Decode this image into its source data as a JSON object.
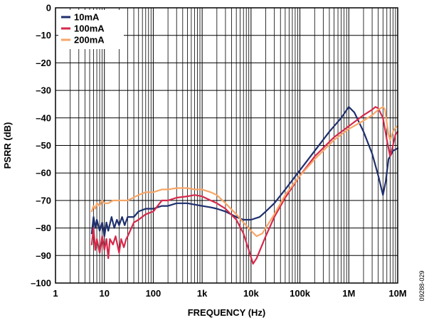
{
  "chart_data": {
    "type": "line",
    "xlabel": "FREQUENCY (Hz)",
    "ylabel": "PSRR (dB)",
    "x_scale": "log",
    "xlim": [
      1,
      10000000
    ],
    "ylim": [
      -100,
      0
    ],
    "x_ticks": [
      {
        "value": 1,
        "label": "1"
      },
      {
        "value": 10,
        "label": "10"
      },
      {
        "value": 100,
        "label": "100"
      },
      {
        "value": 1000,
        "label": "1k"
      },
      {
        "value": 10000,
        "label": "10k"
      },
      {
        "value": 100000,
        "label": "100k"
      },
      {
        "value": 1000000,
        "label": "1M"
      },
      {
        "value": 10000000,
        "label": "10M"
      }
    ],
    "y_ticks": [
      {
        "value": 0,
        "label": "0"
      },
      {
        "value": -10,
        "label": "–10"
      },
      {
        "value": -20,
        "label": "–20"
      },
      {
        "value": -30,
        "label": "–30"
      },
      {
        "value": -40,
        "label": "–40"
      },
      {
        "value": -50,
        "label": "–50"
      },
      {
        "value": -60,
        "label": "–60"
      },
      {
        "value": -70,
        "label": "–70"
      },
      {
        "value": -80,
        "label": "–80"
      },
      {
        "value": -90,
        "label": "–90"
      },
      {
        "value": -100,
        "label": "–100"
      }
    ],
    "grid": true,
    "legend_position": "top-left",
    "figure_code": "09288-029",
    "series": [
      {
        "name": "10mA",
        "color": "#1f2f6e",
        "points": [
          [
            5.5,
            -82
          ],
          [
            6,
            -76
          ],
          [
            6.5,
            -80
          ],
          [
            7,
            -77
          ],
          [
            8,
            -81
          ],
          [
            9,
            -78
          ],
          [
            10,
            -83
          ],
          [
            11,
            -78
          ],
          [
            12,
            -81
          ],
          [
            14,
            -76
          ],
          [
            16,
            -80
          ],
          [
            18,
            -77
          ],
          [
            20,
            -79
          ],
          [
            23,
            -76
          ],
          [
            26,
            -79
          ],
          [
            30,
            -76
          ],
          [
            40,
            -76
          ],
          [
            50,
            -74
          ],
          [
            70,
            -73
          ],
          [
            100,
            -73
          ],
          [
            150,
            -72
          ],
          [
            200,
            -72
          ],
          [
            300,
            -71
          ],
          [
            500,
            -71
          ],
          [
            700,
            -71.5
          ],
          [
            1000,
            -72
          ],
          [
            1500,
            -72.5
          ],
          [
            2000,
            -73
          ],
          [
            3000,
            -74
          ],
          [
            5000,
            -76
          ],
          [
            7000,
            -77
          ],
          [
            10000,
            -77
          ],
          [
            15000,
            -76
          ],
          [
            20000,
            -74
          ],
          [
            30000,
            -71
          ],
          [
            50000,
            -66
          ],
          [
            100000,
            -59
          ],
          [
            200000,
            -52
          ],
          [
            400000,
            -45
          ],
          [
            700000,
            -40
          ],
          [
            1000000,
            -36
          ],
          [
            1300000,
            -38
          ],
          [
            2000000,
            -45
          ],
          [
            3000000,
            -53
          ],
          [
            4000000,
            -61
          ],
          [
            5000000,
            -68
          ],
          [
            5700000,
            -63
          ],
          [
            6500000,
            -55
          ],
          [
            8000000,
            -52
          ],
          [
            10000000,
            -51
          ]
        ]
      },
      {
        "name": "100mA",
        "color": "#d6284a",
        "points": [
          [
            5.5,
            -86
          ],
          [
            6,
            -80
          ],
          [
            6.5,
            -88
          ],
          [
            7,
            -84
          ],
          [
            8,
            -89
          ],
          [
            9,
            -83
          ],
          [
            10,
            -88
          ],
          [
            11,
            -84
          ],
          [
            12,
            -91
          ],
          [
            13,
            -84
          ],
          [
            15,
            -86
          ],
          [
            17,
            -83
          ],
          [
            20,
            -89
          ],
          [
            22,
            -84
          ],
          [
            25,
            -87
          ],
          [
            28,
            -84
          ],
          [
            30,
            -83
          ],
          [
            40,
            -78
          ],
          [
            50,
            -77
          ],
          [
            70,
            -75
          ],
          [
            100,
            -74
          ],
          [
            150,
            -70
          ],
          [
            200,
            -70
          ],
          [
            300,
            -69
          ],
          [
            500,
            -68.5
          ],
          [
            700,
            -68
          ],
          [
            1000,
            -68.5
          ],
          [
            1500,
            -70
          ],
          [
            2000,
            -71
          ],
          [
            3000,
            -73
          ],
          [
            5000,
            -77
          ],
          [
            7000,
            -82
          ],
          [
            9000,
            -88
          ],
          [
            11000,
            -93
          ],
          [
            13000,
            -91
          ],
          [
            20000,
            -83
          ],
          [
            30000,
            -76
          ],
          [
            50000,
            -69
          ],
          [
            100000,
            -61
          ],
          [
            200000,
            -54
          ],
          [
            500000,
            -47
          ],
          [
            1000000,
            -43
          ],
          [
            2000000,
            -39
          ],
          [
            3000000,
            -37
          ],
          [
            3500000,
            -36
          ],
          [
            4000000,
            -36.5
          ],
          [
            5000000,
            -40
          ],
          [
            6000000,
            -48
          ],
          [
            7000000,
            -54
          ],
          [
            8000000,
            -50
          ],
          [
            9000000,
            -46
          ],
          [
            10000000,
            -45
          ]
        ]
      },
      {
        "name": "200mA",
        "color": "#f7a668",
        "points": [
          [
            5.5,
            -74
          ],
          [
            6,
            -72
          ],
          [
            6.5,
            -73
          ],
          [
            7,
            -71
          ],
          [
            8,
            -72
          ],
          [
            9,
            -70
          ],
          [
            10,
            -71
          ],
          [
            12,
            -71
          ],
          [
            15,
            -70
          ],
          [
            20,
            -70
          ],
          [
            30,
            -70
          ],
          [
            50,
            -68
          ],
          [
            70,
            -67
          ],
          [
            100,
            -67
          ],
          [
            150,
            -66
          ],
          [
            200,
            -66
          ],
          [
            300,
            -65.5
          ],
          [
            500,
            -65.5
          ],
          [
            700,
            -66
          ],
          [
            1000,
            -66
          ],
          [
            1500,
            -67
          ],
          [
            2000,
            -68
          ],
          [
            3000,
            -71
          ],
          [
            5000,
            -75
          ],
          [
            7000,
            -78
          ],
          [
            10000,
            -81
          ],
          [
            13000,
            -83
          ],
          [
            17000,
            -82
          ],
          [
            20000,
            -80
          ],
          [
            30000,
            -75
          ],
          [
            50000,
            -68
          ],
          [
            100000,
            -61
          ],
          [
            200000,
            -55
          ],
          [
            500000,
            -48
          ],
          [
            1000000,
            -44
          ],
          [
            2000000,
            -41
          ],
          [
            3000000,
            -39
          ],
          [
            4000000,
            -37
          ],
          [
            5000000,
            -36
          ],
          [
            5500000,
            -37
          ],
          [
            6000000,
            -42
          ],
          [
            6500000,
            -46
          ],
          [
            7000000,
            -48
          ],
          [
            8000000,
            -45
          ],
          [
            9000000,
            -43.5
          ],
          [
            10000000,
            -43
          ]
        ]
      }
    ]
  }
}
